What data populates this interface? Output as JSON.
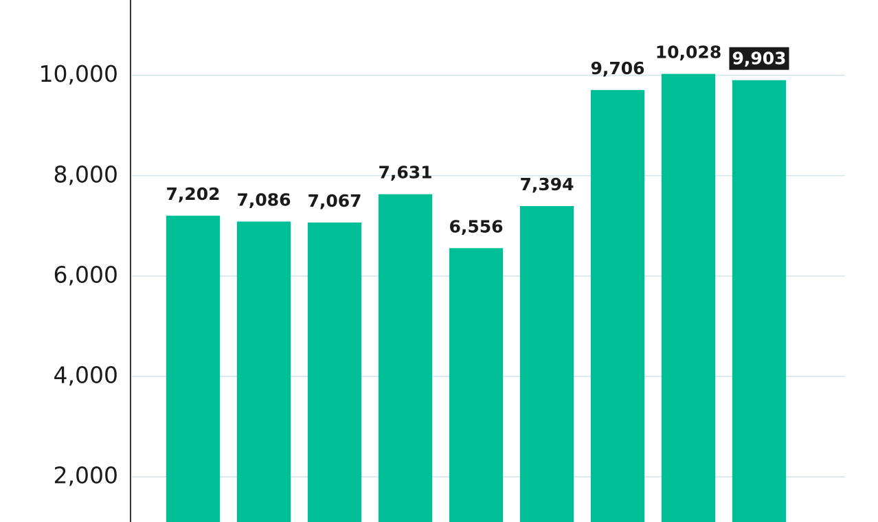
{
  "chart_data": {
    "type": "bar",
    "categories": [
      null,
      null,
      null,
      null,
      null,
      null,
      null,
      null,
      null
    ],
    "values": [
      7202,
      7086,
      7067,
      7631,
      6556,
      7394,
      9706,
      10028,
      9903
    ],
    "value_labels": [
      "7,202",
      "7,086",
      "7,067",
      "7,631",
      "6,556",
      "7,394",
      "9,706",
      "10,028",
      "9,903"
    ],
    "color": "#00bf96",
    "highlight": 8,
    "ylim": [
      1100,
      11500
    ],
    "yticks": [
      {
        "value": 2000,
        "label": "2,000"
      },
      {
        "value": 4000,
        "label": "4,000"
      },
      {
        "value": 6000,
        "label": "6,000"
      },
      {
        "value": 8000,
        "label": "8,000"
      },
      {
        "value": 10000,
        "label": "10,000"
      }
    ],
    "grid": true
  }
}
